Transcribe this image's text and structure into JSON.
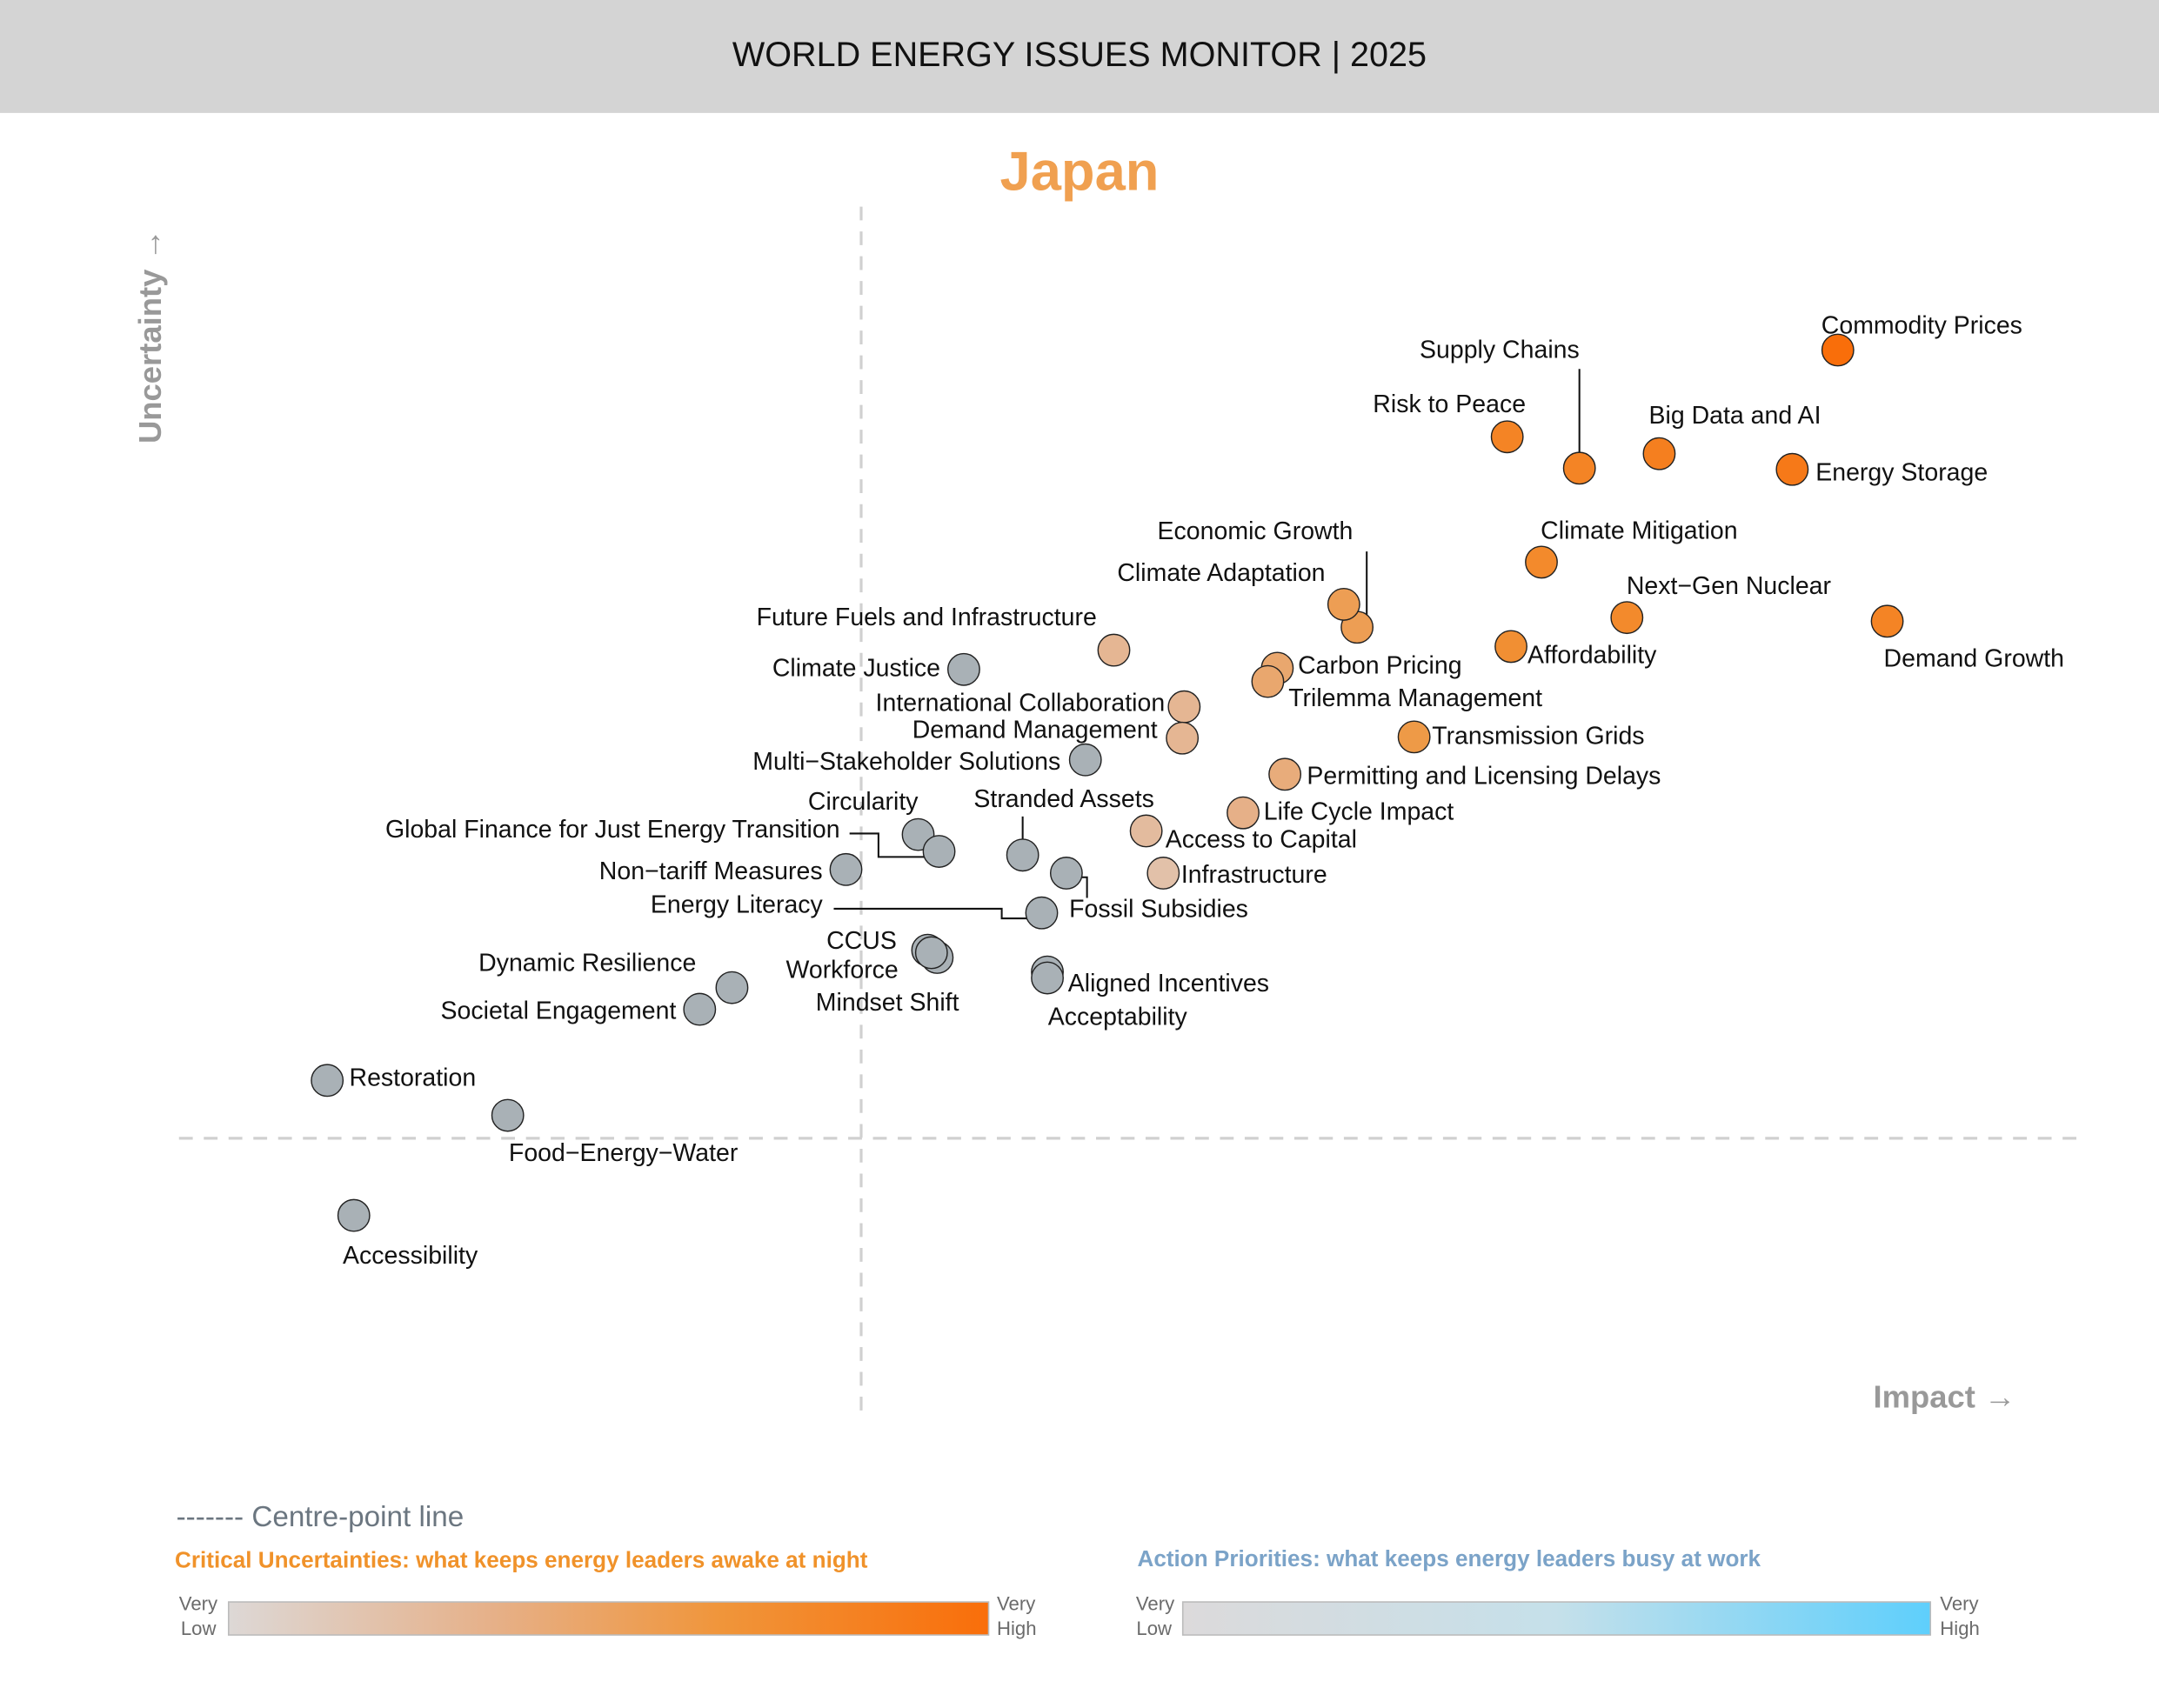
{
  "header": {
    "title": "WORLD ENERGY ISSUES MONITOR | 2025"
  },
  "chart_data": {
    "type": "scatter",
    "title": "Japan",
    "xlabel": "Impact",
    "ylabel": "Uncertainty",
    "xlim": [
      0,
      100
    ],
    "ylim": [
      0,
      100
    ],
    "grid": false,
    "centre_point": {
      "x": 35.9,
      "y": 22.7,
      "label": "Centre-point line"
    },
    "colors": {
      "uncertainty_low": "#ddd8d6",
      "uncertainty_mid_low": "#e6b088",
      "uncertainty_mid_high": "#f0953a",
      "uncertainty_high": "#f96e0a",
      "priority_low": "#dcdadb",
      "priority_high": "#5ecffc",
      "action_point": "#a9b1b6"
    },
    "points": [
      {
        "name": "Commodity Prices",
        "x": 87.3,
        "y": 88.1,
        "category": "critical",
        "level": 1.0
      },
      {
        "name": "Supply Chains",
        "x": 73.7,
        "y": 78.3,
        "category": "critical",
        "level": 0.8
      },
      {
        "name": "Risk to Peace",
        "x": 69.9,
        "y": 80.9,
        "category": "critical",
        "level": 0.8
      },
      {
        "name": "Big Data and AI",
        "x": 77.9,
        "y": 79.5,
        "category": "critical",
        "level": 0.85
      },
      {
        "name": "Energy Storage",
        "x": 84.9,
        "y": 78.2,
        "category": "critical",
        "level": 0.9
      },
      {
        "name": "Climate Mitigation",
        "x": 71.7,
        "y": 70.5,
        "category": "critical",
        "level": 0.75
      },
      {
        "name": "Next−Gen Nuclear",
        "x": 76.2,
        "y": 65.9,
        "category": "critical",
        "level": 0.75
      },
      {
        "name": "Demand Growth",
        "x": 89.9,
        "y": 65.6,
        "category": "critical",
        "level": 0.8
      },
      {
        "name": "Affordability",
        "x": 70.1,
        "y": 63.5,
        "category": "critical",
        "level": 0.7
      },
      {
        "name": "Economic Growth",
        "x": 62.0,
        "y": 65.1,
        "category": "critical",
        "level": 0.55
      },
      {
        "name": "Climate Adaptation",
        "x": 61.3,
        "y": 67.0,
        "category": "critical",
        "level": 0.55
      },
      {
        "name": "Carbon Pricing",
        "x": 57.8,
        "y": 61.7,
        "category": "critical",
        "level": 0.45
      },
      {
        "name": "Trilemma Management",
        "x": 57.3,
        "y": 60.6,
        "category": "critical",
        "level": 0.45
      },
      {
        "name": "Transmission Grids",
        "x": 65.0,
        "y": 56.0,
        "category": "critical",
        "level": 0.6
      },
      {
        "name": "Permitting and Licensing Delays",
        "x": 58.2,
        "y": 52.9,
        "category": "critical",
        "level": 0.4
      },
      {
        "name": "Life Cycle Impact",
        "x": 56.0,
        "y": 49.7,
        "category": "critical",
        "level": 0.35
      },
      {
        "name": "Access to Capital",
        "x": 50.9,
        "y": 48.2,
        "category": "critical",
        "level": 0.25
      },
      {
        "name": "Infrastructure",
        "x": 51.8,
        "y": 44.7,
        "category": "critical",
        "level": 0.2
      },
      {
        "name": "Future Fuels and Infrastructure",
        "x": 49.2,
        "y": 63.2,
        "category": "critical",
        "level": 0.3
      },
      {
        "name": "International Collaboration",
        "x": 52.9,
        "y": 58.5,
        "category": "critical",
        "level": 0.3
      },
      {
        "name": "Demand Management",
        "x": 52.8,
        "y": 55.9,
        "category": "critical",
        "level": 0.3
      },
      {
        "name": "Climate Justice",
        "x": 41.3,
        "y": 61.6,
        "category": "action"
      },
      {
        "name": "Multi−Stakeholder Solutions",
        "x": 47.7,
        "y": 54.1,
        "category": "action"
      },
      {
        "name": "Circularity",
        "x": 38.9,
        "y": 47.9,
        "category": "action"
      },
      {
        "name": "Global Finance for Just Energy Transition",
        "x": 40.0,
        "y": 46.5,
        "category": "action"
      },
      {
        "name": "Non−tariff Measures",
        "x": 35.1,
        "y": 45.0,
        "category": "action"
      },
      {
        "name": "Stranded Assets",
        "x": 44.4,
        "y": 46.2,
        "category": "action"
      },
      {
        "name": "Fossil Subsidies",
        "x": 46.7,
        "y": 44.7,
        "category": "action"
      },
      {
        "name": "Energy Literacy",
        "x": 45.4,
        "y": 41.4,
        "category": "action"
      },
      {
        "name": "CCUS",
        "x": 39.4,
        "y": 38.3,
        "category": "action"
      },
      {
        "name": "Workforce",
        "x": 39.9,
        "y": 37.7,
        "category": "action"
      },
      {
        "name": "Mindset Shift",
        "x": 39.6,
        "y": 38.1,
        "category": "action"
      },
      {
        "name": "Aligned Incentives",
        "x": 45.7,
        "y": 36.5,
        "category": "action"
      },
      {
        "name": "Acceptability",
        "x": 45.7,
        "y": 36.0,
        "category": "action"
      },
      {
        "name": "Dynamic Resilience",
        "x": 29.1,
        "y": 35.2,
        "category": "action"
      },
      {
        "name": "Societal Engagement",
        "x": 27.4,
        "y": 33.4,
        "category": "action"
      },
      {
        "name": "Restoration",
        "x": 7.8,
        "y": 27.5,
        "category": "action"
      },
      {
        "name": "Food−Energy−Water",
        "x": 17.3,
        "y": 24.6,
        "category": "action"
      },
      {
        "name": "Accessibility",
        "x": 9.2,
        "y": 16.3,
        "category": "action"
      }
    ]
  },
  "legend": {
    "centre_line": "------- Centre-point line",
    "critical_title": "Critical Uncertainties: what keeps energy leaders awake at night",
    "action_title": "Action Priorities: what keeps energy leaders busy at work",
    "very": "Very",
    "low": "Low",
    "high": "High"
  },
  "axes": {
    "x_label": "Impact →",
    "y_label": "Uncertainty →"
  }
}
